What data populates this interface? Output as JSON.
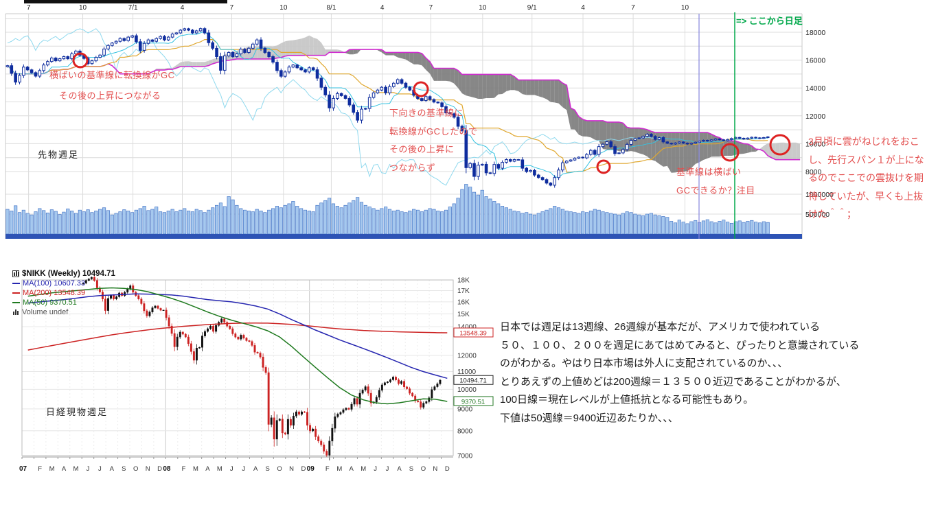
{
  "commentary": {
    "lines": [
      "日本では週足は13週線、26週線が基本だが、アメリカで使われている",
      "５０、１００、２００を週足にあてはめてみると、ぴったりと意識されている",
      "のがわかる。やはり日本市場は外人に支配されているのか、、、",
      "とりあえずの上値めどは200週線＝１３５００近辺であることがわかるが、",
      "100日線＝現在レベルが上値抵抗となる可能性もあり。",
      "下値は50週線＝9400近辺あたりか、、、"
    ]
  },
  "chart_data": [
    {
      "type": "candlestick",
      "subtype": "ichimoku_with_volume",
      "title": "先物週足",
      "legend_position": "none",
      "grid": true,
      "ylim": [
        7500,
        18800
      ],
      "x_ticks": [
        {
          "t": "7",
          "f": 0.029
        },
        {
          "t": "10",
          "f": 0.097
        },
        {
          "t": "7/1",
          "f": 0.16
        },
        {
          "t": "4",
          "f": 0.222
        },
        {
          "t": "7",
          "f": 0.284
        },
        {
          "t": "10",
          "f": 0.349
        },
        {
          "t": "8/1",
          "f": 0.409
        },
        {
          "t": "4",
          "f": 0.473
        },
        {
          "t": "7",
          "f": 0.534
        },
        {
          "t": "10",
          "f": 0.599
        },
        {
          "t": "9/1",
          "f": 0.661
        },
        {
          "t": "4",
          "f": 0.725
        },
        {
          "t": "7",
          "f": 0.788
        },
        {
          "t": "10",
          "f": 0.853
        }
      ],
      "y_price_ticks": [
        {
          "t": "18000",
          "v": 18000
        },
        {
          "t": "16000",
          "v": 16000
        },
        {
          "t": "14000",
          "v": 14000
        },
        {
          "t": "12000",
          "v": 12000
        },
        {
          "t": "10000",
          "v": 10000
        },
        {
          "t": "8000",
          "v": 8000
        }
      ],
      "y_volume_ticks": [
        {
          "t": "1000000",
          "v_k": 1000
        },
        {
          "t": "500000",
          "v_k": 500
        }
      ],
      "daily_start_index": 165,
      "ichimoku_periods": {
        "tenkan": 9,
        "kijun": 26,
        "senkou_b": 52,
        "shift": 26
      },
      "closes": [
        15600,
        15050,
        14420,
        14900,
        15500,
        15300,
        15100,
        14850,
        15250,
        15650,
        15900,
        16150,
        15950,
        16100,
        16250,
        16100,
        16450,
        16650,
        16350,
        16120,
        15750,
        15950,
        16200,
        16360,
        16800,
        17050,
        17225,
        17350,
        17550,
        17400,
        17650,
        17750,
        17320,
        16700,
        17200,
        17450,
        17350,
        17550,
        17700,
        17450,
        17650,
        17875,
        17950,
        18150,
        18250,
        18150,
        17950,
        18100,
        18260,
        17950,
        17250,
        16850,
        16250,
        15270,
        16300,
        16550,
        16250,
        16450,
        16785,
        16550,
        16850,
        17150,
        17450,
        16850,
        16550,
        16250,
        15850,
        15250,
        14840,
        15150,
        15500,
        15650,
        15450,
        15300,
        15150,
        15450,
        15307,
        14700,
        14050,
        13500,
        12570,
        13250,
        13600,
        13450,
        13250,
        12780,
        12250,
        11690,
        12480,
        12530,
        13320,
        13650,
        13850,
        14050,
        13650,
        14100,
        14340,
        14600,
        14340,
        14050,
        13850,
        13480,
        13240,
        13100,
        13380,
        13170,
        12990,
        12930,
        12660,
        12210,
        12150,
        11900,
        11250,
        10940,
        8280,
        8580,
        7650,
        8460,
        8520,
        7910,
        7860,
        8510,
        8240,
        8660,
        8860,
        8740,
        8860,
        8840,
        8240,
        7995,
        8080,
        7750,
        7570,
        7420,
        7170,
        7020,
        7570,
        8110,
        8630,
        8750,
        8830,
        8960,
        9030,
        8980,
        9230,
        9520,
        9230,
        9790,
        9960,
        10140,
        9790,
        9290,
        9340,
        9580,
        9950,
        10240,
        10360,
        10410,
        10530,
        10680,
        10520,
        10310,
        10440,
        10130,
        10030,
        9980,
        10050,
        10120,
        10040,
        9970,
        10030,
        10100,
        10180,
        10240,
        10190,
        10270,
        10340,
        10280,
        10220,
        10300,
        10380,
        10450,
        10390,
        10330,
        10400,
        10460,
        10420,
        10380,
        10440,
        10490
      ],
      "volumes_k": [
        620,
        580,
        710,
        540,
        600,
        520,
        480,
        560,
        640,
        590,
        530,
        610,
        570,
        490,
        550,
        630,
        580,
        520,
        600,
        560,
        610,
        540,
        580,
        620,
        660,
        590,
        480,
        520,
        560,
        610,
        580,
        540,
        600,
        640,
        700,
        590,
        620,
        680,
        560,
        540,
        580,
        620,
        560,
        600,
        640,
        580,
        560,
        620,
        590,
        540,
        600,
        660,
        720,
        780,
        690,
        940,
        860,
        720,
        640,
        600,
        580,
        560,
        620,
        580,
        540,
        600,
        640,
        700,
        660,
        720,
        760,
        820,
        700,
        640,
        600,
        580,
        560,
        720,
        780,
        840,
        900,
        760,
        700,
        660,
        720,
        780,
        840,
        920,
        800,
        720,
        680,
        640,
        600,
        640,
        680,
        620,
        580,
        600,
        560,
        540,
        580,
        620,
        600,
        560,
        600,
        640,
        620,
        580,
        560,
        600,
        680,
        760,
        900,
        1120,
        1250,
        1180,
        1050,
        980,
        1100,
        940,
        880,
        820,
        760,
        700,
        660,
        620,
        580,
        560,
        520,
        540,
        500,
        480,
        520,
        560,
        600,
        640,
        700,
        660,
        620,
        580,
        560,
        540,
        520,
        560,
        540,
        580,
        620,
        600,
        560,
        540,
        520,
        500,
        480,
        520,
        560,
        540,
        500,
        480,
        460,
        500,
        520,
        480,
        460,
        440,
        420,
        320,
        280,
        350,
        300,
        260,
        310,
        340,
        290,
        330,
        360,
        310,
        280,
        320,
        350,
        300,
        270,
        310,
        330,
        290,
        320,
        340,
        300,
        280,
        310,
        290
      ],
      "markers": {
        "circles": [
          {
            "x": 117,
            "y": 88,
            "r": 10
          },
          {
            "x": 613,
            "y": 130,
            "r": 10
          },
          {
            "x": 879,
            "y": 243,
            "r": 9
          },
          {
            "x": 1063,
            "y": 222,
            "r": 12
          },
          {
            "x": 1136,
            "y": 211,
            "r": 14
          }
        ],
        "blue_vline_x": 1018,
        "green_vline_x": 1070
      },
      "annotations": {
        "chart_label": "先物週足",
        "gc1_l1": "横ばいの基準線に転換線がGC",
        "gc1_l2": "その後の上昇につながる",
        "gc2_l1": "下向きの基準線に",
        "gc2_l2": "転換線がGCしたので",
        "gc2_l3": "その後の上昇に",
        "gc2_l4": "つながらず",
        "gc3_l1": "基準線は横ばい",
        "gc3_l2": "GCできるか？注目",
        "daily_note": "=> ここから日足",
        "side": [
          "3月頃に雲がねじれをおこ",
          "し、先行スパン１が上にな",
          "るのでここでの雲抜けを期",
          "待していたが、早くも上抜",
          "けた＾＾；"
        ]
      },
      "colors": {
        "candle": "#0f2d9e",
        "candle_up_fill": "#ffffff",
        "vol_fill": "#a6c8ee",
        "vol_stroke": "#4878c8",
        "baseline": "#2d53b5",
        "tenkan": "#35c2e0",
        "kijun": "#e0a830",
        "chikou": "#8fd9ee",
        "spanB": "#cf2ccf",
        "cloud_bull": "#c6c6c6",
        "cloud_bear": "#7d7d7d",
        "grid": "#dcdcdc",
        "frame": "#c9c9c9",
        "circle": "#dd2222",
        "vline_blue": "#8585dd",
        "vline_green": "#00a84a",
        "axis_text": "#222222"
      }
    },
    {
      "type": "candlestick",
      "subtype": "weekly_with_moving_averages",
      "scale": "log",
      "grid": true,
      "legend_position": "top-left",
      "legend": {
        "title": "$NIKK (Weekly) 10494.71",
        "ma100": "MA(100) 10607.33",
        "ma200": "MA(200) 13548.39",
        "ma50": "MA(50) 9370.51",
        "volume": "Volume undef"
      },
      "chart_label": "日経現物週足",
      "last_close": 10494.71,
      "x_labels": [
        "07",
        "F",
        "M",
        "A",
        "M",
        "J",
        "J",
        "A",
        "S",
        "O",
        "N",
        "D",
        "08",
        "F",
        "M",
        "A",
        "M",
        "J",
        "J",
        "A",
        "S",
        "O",
        "N",
        "D",
        "09",
        "F",
        "M",
        "A",
        "M",
        "J",
        "J",
        "A",
        "S",
        "O",
        "N",
        "D"
      ],
      "y_ticks": [
        {
          "t": "18K",
          "v": 18000
        },
        {
          "t": "17K",
          "v": 17000
        },
        {
          "t": "16K",
          "v": 16000
        },
        {
          "t": "15K",
          "v": 15000
        },
        {
          "t": "14000",
          "v": 14000
        },
        {
          "t": "12000",
          "v": 12000
        },
        {
          "t": "11000",
          "v": 11000
        },
        {
          "t": "10000",
          "v": 10000
        },
        {
          "t": "9000",
          "v": 9000
        },
        {
          "t": "8000",
          "v": 8000
        },
        {
          "t": "7000",
          "v": 7000
        }
      ],
      "price_boxes": [
        {
          "t": "13548.39",
          "v": 13548.39,
          "color": "#cc2222"
        },
        {
          "t": "10494.71",
          "v": 10494.71,
          "color": "#222222"
        },
        {
          "t": "9370.51",
          "v": 9370.51,
          "color": "#227722"
        }
      ],
      "ylim": [
        7000,
        18000
      ],
      "start_month_index": 5,
      "weeks_per_month": 4.33,
      "closes": [
        17700,
        17950,
        18100,
        18260,
        17950,
        17250,
        16870,
        16250,
        15270,
        16300,
        16550,
        16250,
        16450,
        16785,
        16550,
        16850,
        17150,
        17450,
        16850,
        16550,
        16250,
        15850,
        15250,
        14840,
        15150,
        15500,
        15650,
        15450,
        15300,
        15307,
        14700,
        14050,
        13500,
        12570,
        13250,
        13600,
        13450,
        13250,
        12780,
        12250,
        11690,
        12480,
        12530,
        13320,
        13650,
        13850,
        14050,
        13650,
        14100,
        14340,
        14600,
        14340,
        14050,
        13850,
        13480,
        13240,
        13100,
        13380,
        13170,
        12990,
        12930,
        12660,
        12210,
        12150,
        11900,
        11250,
        10940,
        8280,
        8580,
        7650,
        8460,
        8520,
        7910,
        7860,
        8510,
        8240,
        8660,
        8860,
        8740,
        8860,
        8840,
        8240,
        7995,
        8080,
        7750,
        7570,
        7420,
        7170,
        7020,
        7570,
        8110,
        8630,
        8750,
        8830,
        8960,
        9030,
        8980,
        9230,
        9520,
        9230,
        9790,
        9960,
        10140,
        9790,
        9290,
        9340,
        9580,
        9950,
        10240,
        10360,
        10410,
        10530,
        10680,
        10520,
        10310,
        10440,
        10130,
        10030,
        9790,
        9650,
        9400,
        9350,
        9080,
        9280,
        9360,
        9550,
        9980,
        10140,
        10300,
        10494.71
      ],
      "ma100_monthly": [
        15900,
        16000,
        16100,
        16200,
        16320,
        16450,
        16550,
        16600,
        16650,
        16700,
        16680,
        16650,
        16600,
        16500,
        16350,
        16200,
        16100,
        16000,
        15850,
        15650,
        15400,
        15000,
        14550,
        14150,
        13750,
        13400,
        13050,
        12750,
        12450,
        12150,
        11850,
        11550,
        11250,
        11000,
        10800,
        10607
      ],
      "ma200_monthly": [
        12350,
        12500,
        12650,
        12800,
        12950,
        13100,
        13250,
        13400,
        13530,
        13650,
        13760,
        13860,
        13950,
        14030,
        14100,
        14160,
        14210,
        14250,
        14270,
        14280,
        14270,
        14230,
        14170,
        14100,
        14010,
        13920,
        13840,
        13780,
        13720,
        13680,
        13650,
        13620,
        13600,
        13580,
        13560,
        13548
      ],
      "ma50_monthly": [
        16500,
        16650,
        16800,
        16900,
        17000,
        17100,
        17200,
        17250,
        17200,
        17100,
        16900,
        16600,
        16300,
        15950,
        15550,
        15150,
        14800,
        14500,
        14250,
        14000,
        13700,
        13250,
        12600,
        11900,
        11250,
        10650,
        10100,
        9700,
        9450,
        9300,
        9250,
        9300,
        9400,
        9500,
        9480,
        9370
      ],
      "colors": {
        "up": "#111111",
        "down": "#cc2222",
        "ma100": "#2626b0",
        "ma200": "#cc2222",
        "ma50": "#1f7a1f",
        "grid": "#e6e6e6",
        "grid_month": "#ececec",
        "grid_year": "#c8c8c8",
        "frame": "#bbbbbb",
        "axis_text": "#333333"
      }
    }
  ]
}
